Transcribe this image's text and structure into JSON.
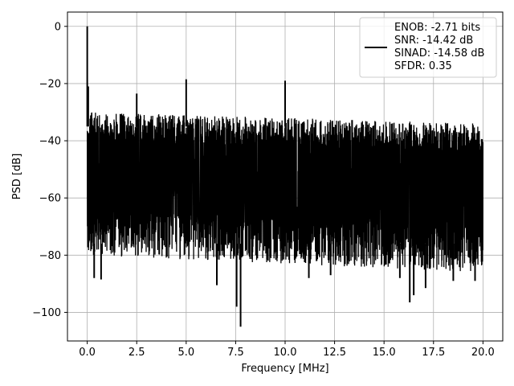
{
  "chart_data": {
    "type": "line",
    "title": "",
    "xlabel": "Frequency [MHz]",
    "ylabel": "PSD [dB]",
    "xlim": [
      -1,
      21
    ],
    "ylim": [
      -110,
      5
    ],
    "xticks": [
      0.0,
      2.5,
      5.0,
      7.5,
      10.0,
      12.5,
      15.0,
      17.5,
      20.0
    ],
    "xtick_labels": [
      "0.0",
      "2.5",
      "5.0",
      "7.5",
      "10.0",
      "12.5",
      "15.0",
      "17.5",
      "20.0"
    ],
    "yticks": [
      0,
      -20,
      -40,
      -60,
      -80,
      -100
    ],
    "ytick_labels": [
      "0",
      "−20",
      "−40",
      "−60",
      "−80",
      "−100"
    ],
    "grid": true,
    "legend_position": "top-right",
    "series": [
      {
        "color": "#000000",
        "noise_floor": {
          "x_range": [
            0,
            20
          ],
          "top_start": -30,
          "top_end": -34,
          "bottom_start": -80,
          "bottom_end": -86,
          "median": -56
        },
        "peaks": [
          {
            "x": 0.0,
            "y": 0
          },
          {
            "x": 0.05,
            "y": -21
          },
          {
            "x": 2.5,
            "y": -23.5
          },
          {
            "x": 5.0,
            "y": -18.5
          },
          {
            "x": 10.0,
            "y": -19
          }
        ],
        "dips": [
          {
            "x": 6.55,
            "y": -90.5
          },
          {
            "x": 7.75,
            "y": -105
          },
          {
            "x": 7.55,
            "y": -98
          },
          {
            "x": 16.3,
            "y": -96.5
          },
          {
            "x": 16.5,
            "y": -94
          },
          {
            "x": 17.1,
            "y": -91.5
          },
          {
            "x": 0.35,
            "y": -88
          },
          {
            "x": 0.7,
            "y": -88.5
          },
          {
            "x": 11.2,
            "y": -88
          },
          {
            "x": 12.3,
            "y": -87
          },
          {
            "x": 15.8,
            "y": -88
          },
          {
            "x": 18.5,
            "y": -89
          },
          {
            "x": 19.6,
            "y": -89
          }
        ]
      }
    ],
    "legend": {
      "lines": [
        "ENOB: -2.71 bits",
        "SNR: -14.42 dB",
        "SINAD: -14.58 dB",
        "SFDR: 0.35"
      ]
    }
  }
}
